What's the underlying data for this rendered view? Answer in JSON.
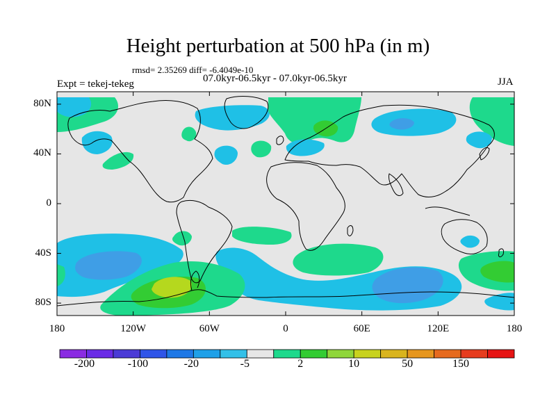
{
  "title": "Height perturbation at 500 hPa (in m)",
  "stats": "rmsd= 2.35269 diff= -6.4049e-10",
  "period": "07.0kyr-06.5kyr - 07.0kyr-06.5kyr",
  "experiment": "Expt = tekej-tekeg",
  "season": "JJA",
  "map": {
    "lon_range": [
      -180,
      180
    ],
    "lat_range": [
      -90,
      90
    ],
    "y_ticks": [
      {
        "label": "80N",
        "lat": 80
      },
      {
        "label": "40N",
        "lat": 40
      },
      {
        "label": "0",
        "lat": 0
      },
      {
        "label": "40S",
        "lat": -40
      },
      {
        "label": "80S",
        "lat": -80
      }
    ],
    "x_ticks": [
      {
        "label": "180",
        "lon": -180
      },
      {
        "label": "120W",
        "lon": -120
      },
      {
        "label": "60W",
        "lon": -60
      },
      {
        "label": "0",
        "lon": 0
      },
      {
        "label": "60E",
        "lon": 60
      },
      {
        "label": "120E",
        "lon": 120
      },
      {
        "label": "180",
        "lon": 180
      }
    ],
    "background_color": "#e6e6e6"
  },
  "colorbar": {
    "colors": [
      "#8a2be2",
      "#6a2be6",
      "#4b3bd6",
      "#2f55e8",
      "#1e78e6",
      "#1fa0e8",
      "#33c0e8",
      "#e6e6e6",
      "#1ed98c",
      "#33cc33",
      "#8fd63a",
      "#c8d21e",
      "#d9b41e",
      "#e6961e",
      "#e66a1e",
      "#e63c1e",
      "#e61414"
    ],
    "labels": [
      "-200",
      "-100",
      "-20",
      "-5",
      "2",
      "10",
      "50",
      "150"
    ]
  },
  "contour_fills": {
    "deep_blue": "#3f9ee6",
    "light_blue": "#1fc0e6",
    "teal_green": "#1ed98c",
    "green": "#33cc33",
    "yellow_green": "#b5d81e"
  }
}
